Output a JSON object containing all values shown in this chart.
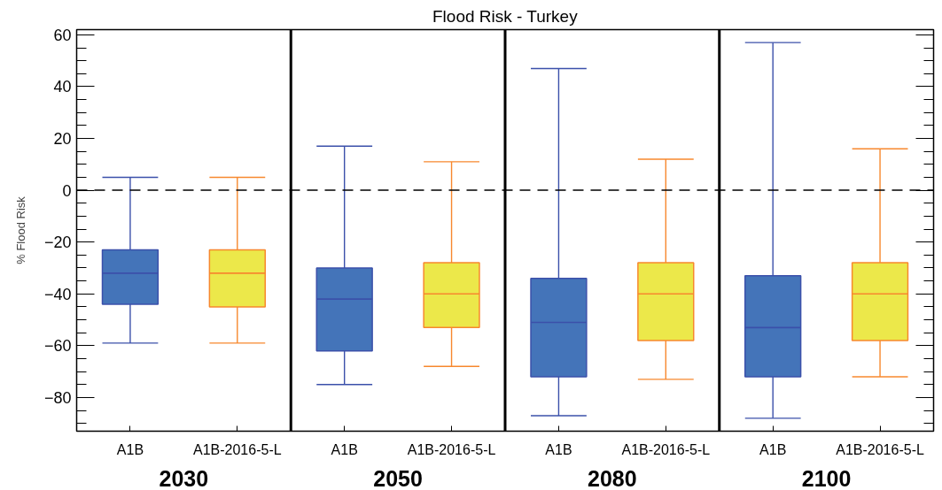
{
  "chart_data": {
    "type": "box",
    "title": "Flood Risk - Turkey",
    "ylabel": "% Flood Risk",
    "categories": [
      "A1B",
      "A1B-2016-5-L",
      "A1B",
      "A1B-2016-5-L",
      "A1B",
      "A1B-2016-5-L",
      "A1B",
      "A1B-2016-5-L"
    ],
    "annotations": [
      "2030",
      "2050",
      "2080",
      "2100"
    ],
    "series": [
      {
        "color": "#4474b9",
        "boxes": [
          {
            "low": -59,
            "q1": -44,
            "median": -32,
            "q3": -23,
            "high": 5
          },
          null,
          {
            "low": -75,
            "q1": -62,
            "median": -42,
            "q3": -30,
            "high": 17
          },
          null,
          {
            "low": -87,
            "q1": -72,
            "median": -51,
            "q3": -34,
            "high": 47
          },
          null,
          {
            "low": -88,
            "q1": -72,
            "median": -53,
            "q3": -33,
            "high": 57
          },
          null
        ]
      },
      {
        "color": "#ece84a",
        "boxes": [
          null,
          {
            "low": -59,
            "q1": -45,
            "median": -32,
            "q3": -23,
            "high": 5
          },
          null,
          {
            "low": -68,
            "q1": -53,
            "median": -40,
            "q3": -28,
            "high": 11
          },
          null,
          {
            "low": -73,
            "q1": -58,
            "median": -40,
            "q3": -28,
            "high": 12
          },
          null,
          {
            "low": -72,
            "q1": -58,
            "median": -40,
            "q3": -28,
            "high": 16
          }
        ]
      }
    ],
    "ylim": [
      -93,
      62
    ],
    "yticks": [
      -80,
      -60,
      -40,
      -20,
      0,
      20,
      40,
      60
    ],
    "ref_lines": [
      {
        "axis": "y",
        "value": 0,
        "color": "#000000",
        "line_style": "dashed"
      }
    ]
  }
}
